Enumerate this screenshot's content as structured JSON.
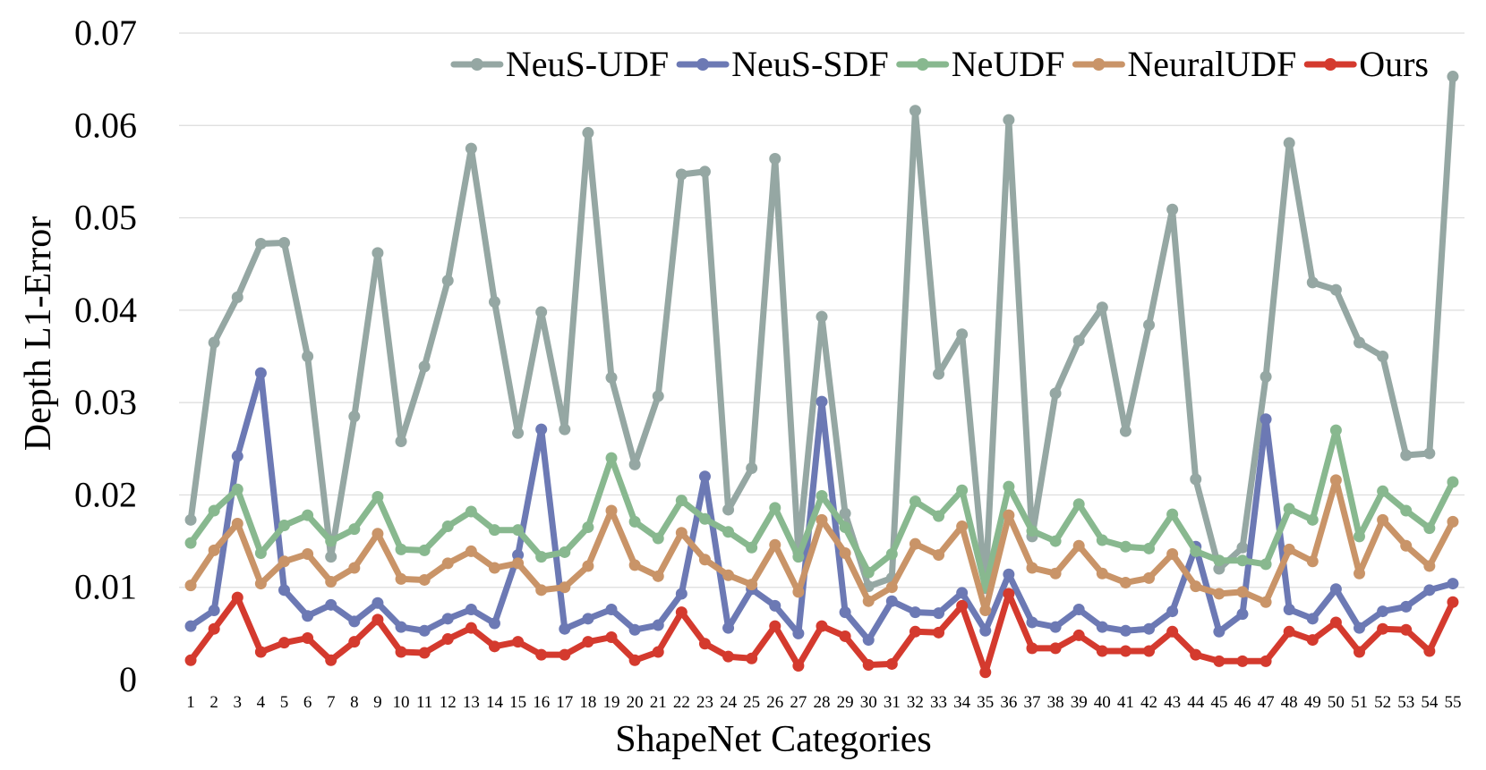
{
  "chart_data": {
    "type": "line",
    "title": "",
    "xlabel": "ShapeNet Categories",
    "ylabel": "Depth L1-Error",
    "ylim": [
      0,
      0.07
    ],
    "yticks": [
      {
        "value": 0,
        "label": "0"
      },
      {
        "value": 0.01,
        "label": "0.01"
      },
      {
        "value": 0.02,
        "label": "0.02"
      },
      {
        "value": 0.03,
        "label": "0.03"
      },
      {
        "value": 0.04,
        "label": "0.04"
      },
      {
        "value": 0.05,
        "label": "0.05"
      },
      {
        "value": 0.06,
        "label": "0.06"
      },
      {
        "value": 0.07,
        "label": "0.07"
      }
    ],
    "grid": true,
    "legend_position": "top-right",
    "categories": [
      "1",
      "2",
      "3",
      "4",
      "5",
      "6",
      "7",
      "8",
      "9",
      "10",
      "11",
      "12",
      "13",
      "14",
      "15",
      "16",
      "17",
      "18",
      "19",
      "20",
      "21",
      "22",
      "23",
      "24",
      "25",
      "26",
      "27",
      "28",
      "29",
      "30",
      "31",
      "32",
      "33",
      "34",
      "35",
      "36",
      "37",
      "38",
      "39",
      "40",
      "41",
      "42",
      "43",
      "44",
      "45",
      "46",
      "47",
      "48",
      "49",
      "50",
      "51",
      "52",
      "53",
      "54",
      "55"
    ],
    "series": [
      {
        "name": "NeuS-UDF",
        "color": "#95a7a3",
        "values": [
          0.0173,
          0.0365,
          0.0414,
          0.0472,
          0.0473,
          0.035,
          0.0133,
          0.0285,
          0.0462,
          0.0258,
          0.0339,
          0.0432,
          0.0575,
          0.0409,
          0.0267,
          0.0398,
          0.0271,
          0.0592,
          0.0327,
          0.0233,
          0.0307,
          0.0547,
          0.055,
          0.0184,
          0.0229,
          0.0564,
          0.0138,
          0.0393,
          0.018,
          0.0101,
          0.011,
          0.0616,
          0.0331,
          0.0374,
          0.0099,
          0.0606,
          0.0155,
          0.031,
          0.0367,
          0.0403,
          0.0269,
          0.0384,
          0.0509,
          0.0217,
          0.012,
          0.0143,
          0.0328,
          0.0581,
          0.043,
          0.0422,
          0.0365,
          0.035,
          0.0243,
          0.0245,
          0.0653
        ]
      },
      {
        "name": "NeuS-SDF",
        "color": "#6c79b4",
        "values": [
          0.0058,
          0.0075,
          0.0242,
          0.0332,
          0.0097,
          0.0069,
          0.0081,
          0.0063,
          0.0083,
          0.0057,
          0.0053,
          0.0066,
          0.0076,
          0.0061,
          0.0135,
          0.0271,
          0.0055,
          0.0066,
          0.0076,
          0.0054,
          0.0059,
          0.0093,
          0.022,
          0.0056,
          0.0098,
          0.008,
          0.005,
          0.0301,
          0.0073,
          0.0043,
          0.0085,
          0.0073,
          0.0072,
          0.0094,
          0.0053,
          0.0114,
          0.0062,
          0.0057,
          0.0076,
          0.0057,
          0.0053,
          0.0055,
          0.0074,
          0.0144,
          0.0052,
          0.0071,
          0.0282,
          0.0076,
          0.0066,
          0.0098,
          0.0056,
          0.0074,
          0.0079,
          0.0097,
          0.0104
        ]
      },
      {
        "name": "NeUDF",
        "color": "#88b88f",
        "values": [
          0.0148,
          0.0183,
          0.0206,
          0.0137,
          0.0167,
          0.0178,
          0.015,
          0.0163,
          0.0198,
          0.0141,
          0.014,
          0.0166,
          0.0182,
          0.0162,
          0.0162,
          0.0133,
          0.0138,
          0.0165,
          0.024,
          0.0171,
          0.0153,
          0.0194,
          0.0174,
          0.016,
          0.0143,
          0.0186,
          0.0133,
          0.0199,
          0.0165,
          0.0116,
          0.0136,
          0.0193,
          0.0177,
          0.0205,
          0.01,
          0.0209,
          0.0161,
          0.015,
          0.019,
          0.0151,
          0.0144,
          0.0142,
          0.0179,
          0.0139,
          0.0129,
          0.0129,
          0.0125,
          0.0185,
          0.0173,
          0.027,
          0.0155,
          0.0204,
          0.0183,
          0.0164,
          0.0214
        ]
      },
      {
        "name": "NeuralUDF",
        "color": "#c99468",
        "values": [
          0.0102,
          0.014,
          0.0169,
          0.0104,
          0.0128,
          0.0136,
          0.0106,
          0.0121,
          0.0158,
          0.0109,
          0.0108,
          0.0126,
          0.0139,
          0.0121,
          0.0126,
          0.0097,
          0.01,
          0.0123,
          0.0183,
          0.0124,
          0.0112,
          0.0159,
          0.013,
          0.0113,
          0.0103,
          0.0146,
          0.0095,
          0.0173,
          0.0137,
          0.0085,
          0.01,
          0.0147,
          0.0135,
          0.0166,
          0.0075,
          0.0178,
          0.0121,
          0.0115,
          0.0145,
          0.0115,
          0.0105,
          0.011,
          0.0136,
          0.0101,
          0.0093,
          0.0095,
          0.0084,
          0.0141,
          0.0128,
          0.0216,
          0.0115,
          0.0173,
          0.0145,
          0.0123,
          0.0171
        ]
      },
      {
        "name": "Ours",
        "color": "#d43a2e",
        "values": [
          0.0021,
          0.0055,
          0.0089,
          0.003,
          0.004,
          0.0045,
          0.0021,
          0.0041,
          0.0065,
          0.003,
          0.0029,
          0.0044,
          0.0056,
          0.0036,
          0.0041,
          0.0027,
          0.0027,
          0.0041,
          0.0046,
          0.0021,
          0.003,
          0.0073,
          0.0039,
          0.0025,
          0.0023,
          0.0058,
          0.0015,
          0.0058,
          0.0047,
          0.0016,
          0.0017,
          0.0052,
          0.0051,
          0.008,
          0.0008,
          0.0093,
          0.0034,
          0.0034,
          0.0048,
          0.0031,
          0.0031,
          0.0031,
          0.0052,
          0.0027,
          0.002,
          0.002,
          0.002,
          0.0052,
          0.0043,
          0.0062,
          0.003,
          0.0055,
          0.0054,
          0.0031,
          0.0084
        ]
      }
    ]
  }
}
